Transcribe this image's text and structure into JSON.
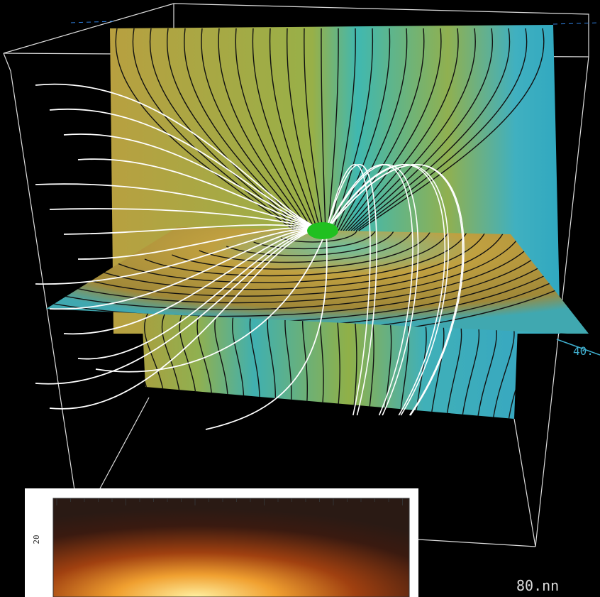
{
  "labels": {
    "axis_right": "40.",
    "axis_bottom": "80.nn",
    "inset_tick": "20"
  }
}
